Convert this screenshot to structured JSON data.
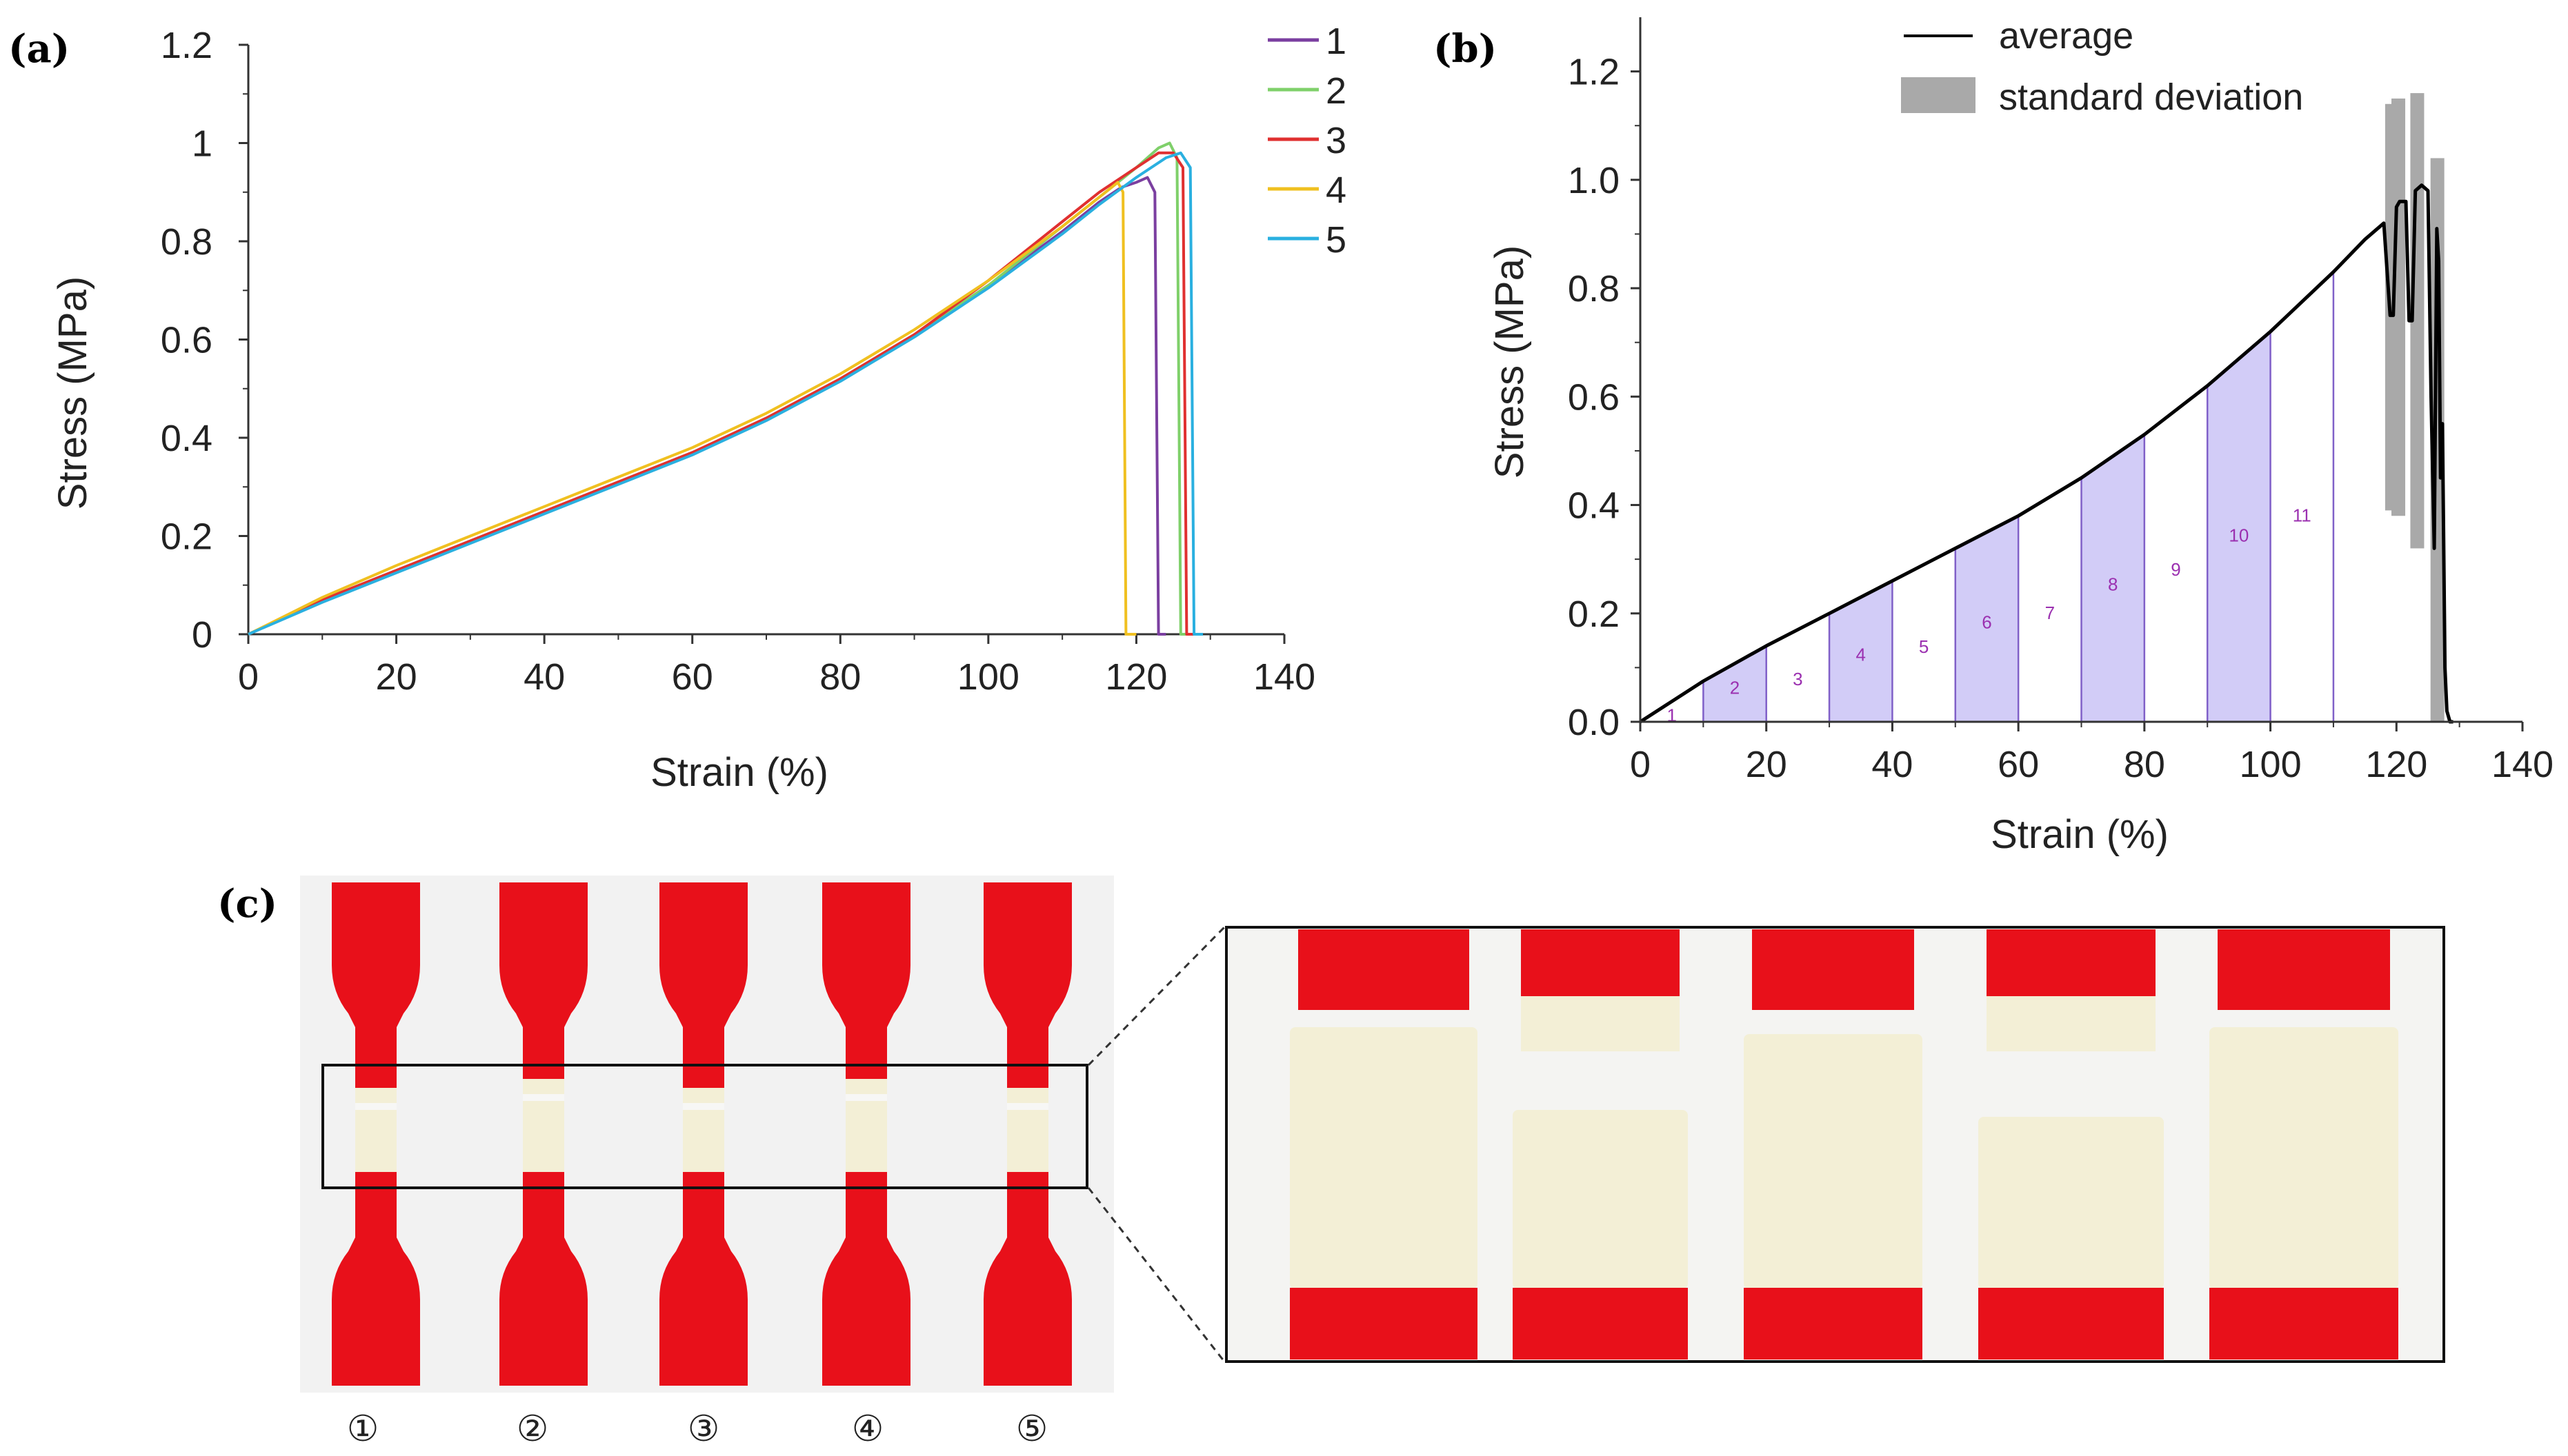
{
  "panels": {
    "a": "(a)",
    "b": "(b)",
    "c": "(c)"
  },
  "chart_data": [
    {
      "type": "line",
      "panel": "(a)",
      "xlabel": "Strain (%)",
      "ylabel": "Stress (MPa)",
      "xlim": [
        0,
        140
      ],
      "ylim": [
        0,
        1.2
      ],
      "xticks": [
        0,
        20,
        40,
        60,
        80,
        100,
        120,
        140
      ],
      "xtick_labels": [
        "0",
        "20",
        "40",
        "60",
        "80",
        "100",
        "120",
        "140"
      ],
      "yticks": [
        0,
        0.2,
        0.4,
        0.6,
        0.8,
        1,
        1.2
      ],
      "ytick_labels": [
        "0",
        "0.2",
        "0.4",
        "0.6",
        "0.8",
        "1",
        "1.2"
      ],
      "grid": false,
      "legend_position": "top-right",
      "series": [
        {
          "name": "1",
          "color": "#7b3fa0",
          "x": [
            0,
            10,
            20,
            30,
            40,
            50,
            60,
            70,
            80,
            90,
            100,
            110,
            115,
            118,
            120,
            121.5,
            122.5,
            123,
            124
          ],
          "y": [
            0,
            0.07,
            0.13,
            0.19,
            0.25,
            0.31,
            0.37,
            0.44,
            0.52,
            0.61,
            0.71,
            0.82,
            0.88,
            0.91,
            0.92,
            0.93,
            0.9,
            0.0,
            0.0
          ]
        },
        {
          "name": "2",
          "color": "#7fd06a",
          "x": [
            0,
            10,
            20,
            30,
            40,
            50,
            60,
            70,
            80,
            90,
            100,
            110,
            115,
            120,
            123,
            124.5,
            125.5,
            126,
            127
          ],
          "y": [
            0,
            0.07,
            0.13,
            0.19,
            0.25,
            0.31,
            0.37,
            0.44,
            0.52,
            0.61,
            0.71,
            0.83,
            0.89,
            0.95,
            0.99,
            1.0,
            0.97,
            0.0,
            0.0
          ]
        },
        {
          "name": "3",
          "color": "#e03030",
          "x": [
            0,
            10,
            20,
            30,
            40,
            50,
            60,
            70,
            80,
            90,
            100,
            110,
            115,
            120,
            123,
            125,
            126.3,
            126.8,
            128
          ],
          "y": [
            0,
            0.07,
            0.13,
            0.19,
            0.25,
            0.31,
            0.37,
            0.44,
            0.52,
            0.61,
            0.72,
            0.84,
            0.9,
            0.95,
            0.98,
            0.98,
            0.95,
            0.0,
            0.0
          ]
        },
        {
          "name": "4",
          "color": "#f0c020",
          "x": [
            0,
            10,
            20,
            30,
            40,
            50,
            60,
            70,
            80,
            90,
            100,
            110,
            115,
            117.5,
            118.2,
            118.6,
            120
          ],
          "y": [
            0,
            0.075,
            0.14,
            0.2,
            0.26,
            0.32,
            0.38,
            0.45,
            0.53,
            0.62,
            0.72,
            0.83,
            0.89,
            0.92,
            0.9,
            0.0,
            0.0
          ]
        },
        {
          "name": "5",
          "color": "#2ab0e0",
          "x": [
            0,
            10,
            20,
            30,
            40,
            50,
            60,
            70,
            80,
            90,
            100,
            110,
            115,
            120,
            124,
            126,
            127.3,
            127.8,
            129
          ],
          "y": [
            0,
            0.065,
            0.125,
            0.185,
            0.245,
            0.305,
            0.365,
            0.435,
            0.515,
            0.605,
            0.705,
            0.815,
            0.875,
            0.93,
            0.97,
            0.98,
            0.95,
            0.0,
            0.0
          ]
        }
      ]
    },
    {
      "type": "area",
      "panel": "(b)",
      "xlabel": "Strain (%)",
      "ylabel": "Stress (MPa)",
      "xlim": [
        0,
        140
      ],
      "ylim": [
        0,
        1.3
      ],
      "xticks": [
        0,
        20,
        40,
        60,
        80,
        100,
        120,
        140
      ],
      "xtick_labels": [
        "0",
        "20",
        "40",
        "60",
        "80",
        "100",
        "120",
        "140"
      ],
      "yticks": [
        0,
        0.2,
        0.4,
        0.6,
        0.8,
        1.0,
        1.2
      ],
      "ytick_labels": [
        "0.0",
        "0.2",
        "0.4",
        "0.6",
        "0.8",
        "1.0",
        "1.2"
      ],
      "grid": false,
      "legend_position": "top-right",
      "legend": {
        "average": "average",
        "std": "standard deviation"
      },
      "average_curve": {
        "x": [
          0,
          10,
          20,
          30,
          40,
          50,
          60,
          70,
          80,
          90,
          100,
          110,
          115,
          118,
          119,
          119.5,
          120,
          120.5,
          121.5,
          122,
          122.5,
          123,
          124,
          125,
          125.5,
          126,
          126.4,
          126.7,
          127,
          127.3,
          127.7,
          128,
          128.5,
          129
        ],
        "y": [
          0,
          0.075,
          0.14,
          0.2,
          0.26,
          0.32,
          0.38,
          0.45,
          0.53,
          0.62,
          0.72,
          0.83,
          0.89,
          0.92,
          0.75,
          0.75,
          0.95,
          0.96,
          0.96,
          0.74,
          0.74,
          0.98,
          0.99,
          0.98,
          0.6,
          0.32,
          0.91,
          0.85,
          0.45,
          0.55,
          0.1,
          0.02,
          0.0,
          0.0
        ]
      },
      "std_bands": [
        {
          "x": 119.3,
          "y_low": 0.39,
          "y_high": 1.14
        },
        {
          "x": 120.3,
          "y_low": 0.38,
          "y_high": 1.15
        },
        {
          "x": 123.3,
          "y_low": 0.32,
          "y_high": 1.16
        },
        {
          "x": 126.5,
          "y_low": 0.0,
          "y_high": 1.04
        }
      ],
      "regions": [
        {
          "label": "1",
          "x0": 0,
          "x1": 10,
          "shaded": false
        },
        {
          "label": "2",
          "x0": 10,
          "x1": 20,
          "shaded": true
        },
        {
          "label": "3",
          "x0": 20,
          "x1": 30,
          "shaded": false
        },
        {
          "label": "4",
          "x0": 30,
          "x1": 40,
          "shaded": true
        },
        {
          "label": "5",
          "x0": 40,
          "x1": 50,
          "shaded": false
        },
        {
          "label": "6",
          "x0": 50,
          "x1": 60,
          "shaded": true
        },
        {
          "label": "7",
          "x0": 60,
          "x1": 70,
          "shaded": false
        },
        {
          "label": "8",
          "x0": 70,
          "x1": 80,
          "shaded": true
        },
        {
          "label": "9",
          "x0": 80,
          "x1": 90,
          "shaded": false
        },
        {
          "label": "10",
          "x0": 90,
          "x1": 100,
          "shaded": true
        },
        {
          "label": "11",
          "x0": 100,
          "x1": 110,
          "shaded": false
        }
      ]
    }
  ],
  "photo": {
    "specimen_labels": [
      "①",
      "②",
      "③",
      "④",
      "⑤"
    ],
    "specimen_color": "#e8101a",
    "gauge_color": "#f3efd6"
  }
}
